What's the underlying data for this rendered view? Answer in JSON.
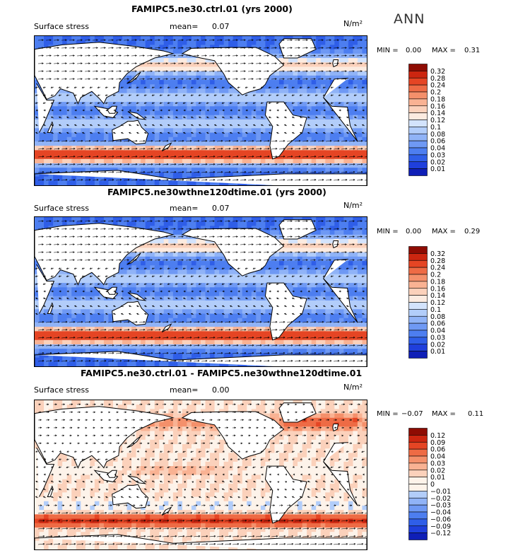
{
  "season": "ANN",
  "colors": {
    "cb_pos": [
      "#050b8a",
      "#0f1fb7",
      "#1f3fdc",
      "#2f5ee8",
      "#4d7ef0",
      "#6f99f4",
      "#90b3f7",
      "#b2cdfa",
      "#d3e3fc",
      "#fcebe0",
      "#fbd1bb",
      "#f9b293",
      "#f4906b",
      "#ee6b45",
      "#e54524",
      "#cc2610",
      "#8e0c03"
    ],
    "cb_diff": [
      "#050b8a",
      "#0f1fb7",
      "#1f3fdc",
      "#2f5ee8",
      "#4d7ef0",
      "#6f99f4",
      "#90b3f7",
      "#b2cdfa",
      "#d3e3fc",
      "#fcebe0",
      "#fbd1bb",
      "#f9b293",
      "#f4906b",
      "#ee6b45",
      "#e54524",
      "#cc2610",
      "#8e0c03"
    ]
  },
  "panels": [
    {
      "title": "FAMIPC5.ne30.ctrl.01 (yrs 2000)",
      "variable": "Surface stress",
      "mean_label": "mean=",
      "mean": "0.07",
      "units": "N/m²",
      "min_label": "MIN =",
      "min": "0.00",
      "max_label": "MAX =",
      "max": "0.31",
      "colorbar_labels": [
        "0.32",
        "0.28",
        "0.24",
        "0.2",
        "0.18",
        "0.16",
        "0.14",
        "0.12",
        "0.1",
        "0.08",
        "0.06",
        "0.04",
        "0.03",
        "0.02",
        "0.01"
      ]
    },
    {
      "title": "FAMIPC5.ne30wthne120dtime.01 (yrs 2000)",
      "variable": "Surface stress",
      "mean_label": "mean=",
      "mean": "0.07",
      "units": "N/m²",
      "min_label": "MIN =",
      "min": "0.00",
      "max_label": "MAX =",
      "max": "0.29",
      "colorbar_labels": [
        "0.32",
        "0.28",
        "0.24",
        "0.2",
        "0.18",
        "0.16",
        "0.14",
        "0.12",
        "0.1",
        "0.08",
        "0.06",
        "0.04",
        "0.03",
        "0.02",
        "0.01"
      ]
    },
    {
      "title": "FAMIPC5.ne30.ctrl.01 - FAMIPC5.ne30wthne120dtime.01",
      "variable": "Surface stress",
      "mean_label": "mean=",
      "mean": "0.00",
      "units": "N/m²",
      "min_label": "MIN =",
      "min": "−0.07",
      "max_label": "MAX =",
      "max": "0.11",
      "colorbar_labels": [
        "0.12",
        "0.09",
        "0.06",
        "0.04",
        "0.03",
        "0.02",
        "0.01",
        "0",
        "−0.01",
        "−0.02",
        "−0.03",
        "−0.04",
        "−0.06",
        "−0.09",
        "−0.12"
      ]
    }
  ],
  "chart_data": [
    {
      "type": "heatmap",
      "title": "FAMIPC5.ne30.ctrl.01 (yrs 2000)",
      "field": "Surface stress",
      "units": "N/m²",
      "mean": 0.07,
      "min": 0.0,
      "max": 0.31,
      "contour_levels": [
        0.01,
        0.02,
        0.03,
        0.04,
        0.06,
        0.08,
        0.1,
        0.12,
        0.14,
        0.16,
        0.18,
        0.2,
        0.24,
        0.28,
        0.32
      ]
    },
    {
      "type": "heatmap",
      "title": "FAMIPC5.ne30wthne120dtime.01 (yrs 2000)",
      "field": "Surface stress",
      "units": "N/m²",
      "mean": 0.07,
      "min": 0.0,
      "max": 0.29,
      "contour_levels": [
        0.01,
        0.02,
        0.03,
        0.04,
        0.06,
        0.08,
        0.1,
        0.12,
        0.14,
        0.16,
        0.18,
        0.2,
        0.24,
        0.28,
        0.32
      ]
    },
    {
      "type": "heatmap",
      "title": "FAMIPC5.ne30.ctrl.01 - FAMIPC5.ne30wthne120dtime.01",
      "field": "Surface stress",
      "units": "N/m²",
      "mean": 0.0,
      "min": -0.07,
      "max": 0.11,
      "contour_levels": [
        -0.12,
        -0.09,
        -0.06,
        -0.04,
        -0.03,
        -0.02,
        -0.01,
        0,
        0.01,
        0.02,
        0.03,
        0.04,
        0.06,
        0.09,
        0.12
      ]
    }
  ]
}
